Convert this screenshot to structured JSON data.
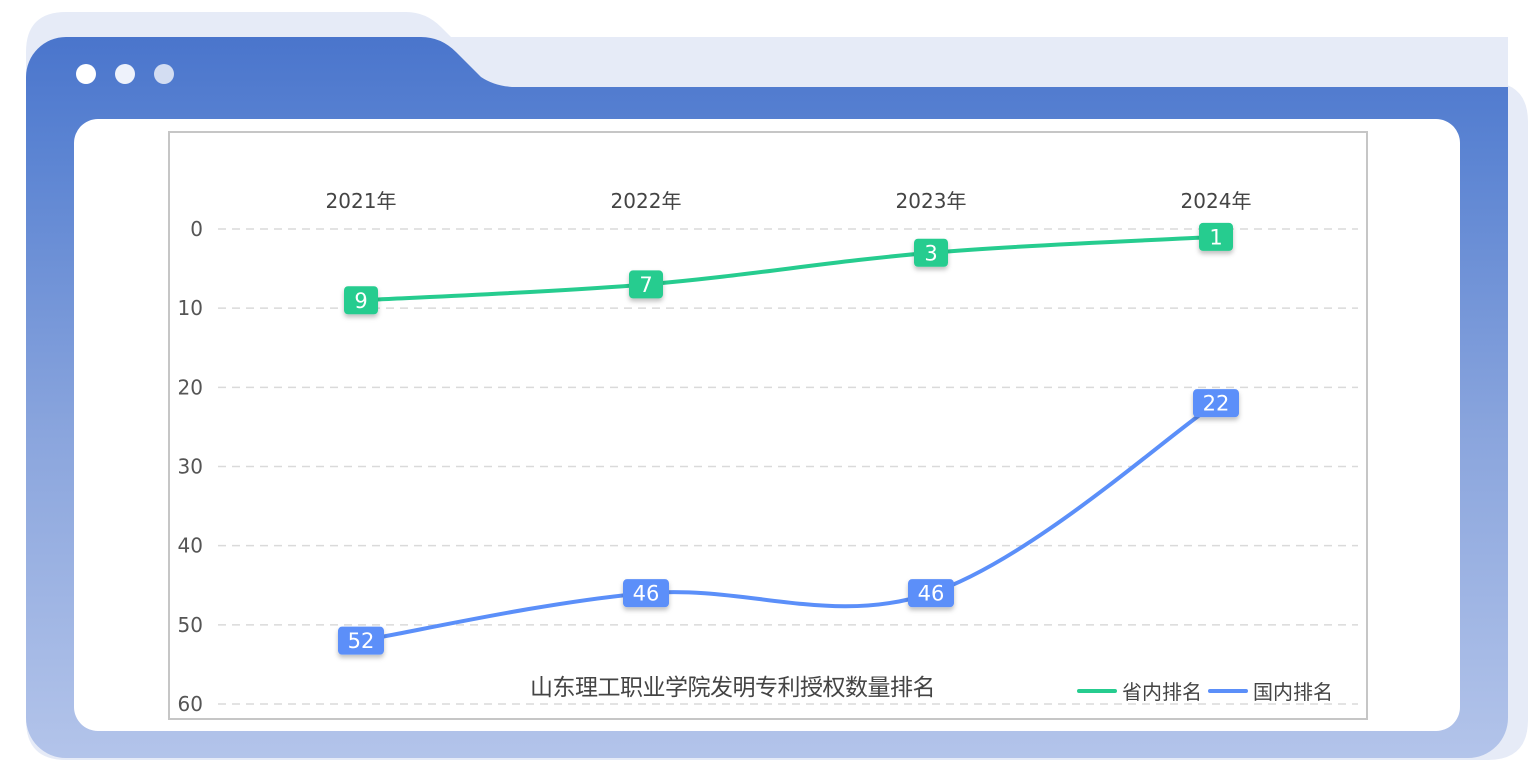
{
  "window": {
    "dots": [
      {
        "name": "window-dot-1",
        "color": "#ffffff"
      },
      {
        "name": "window-dot-2",
        "color": "#eef2fb"
      },
      {
        "name": "window-dot-3",
        "color": "#d3ddf2"
      }
    ],
    "frame_color": "#4a75cc",
    "back_tab_color": "#e6ebf7"
  },
  "chart_data": {
    "type": "line",
    "title": "山东理工职业学院发明专利授权数量排名",
    "categories": [
      "2021年",
      "2022年",
      "2023年",
      "2024年"
    ],
    "xlabel": "",
    "ylabel": "",
    "ylim": [
      0,
      60
    ],
    "y_inverted": true,
    "y_ticks": [
      0,
      10,
      20,
      30,
      40,
      50,
      60
    ],
    "x_axis_position": "top",
    "grid": "horizontal-dashed",
    "legend_position": "bottom-right",
    "smooth": true,
    "series": [
      {
        "name": "省内排名",
        "values": [
          9,
          7,
          3,
          1
        ],
        "color": "#26cc8f"
      },
      {
        "name": "国内排名",
        "values": [
          52,
          46,
          46,
          22
        ],
        "color": "#5b8ff9"
      }
    ]
  }
}
